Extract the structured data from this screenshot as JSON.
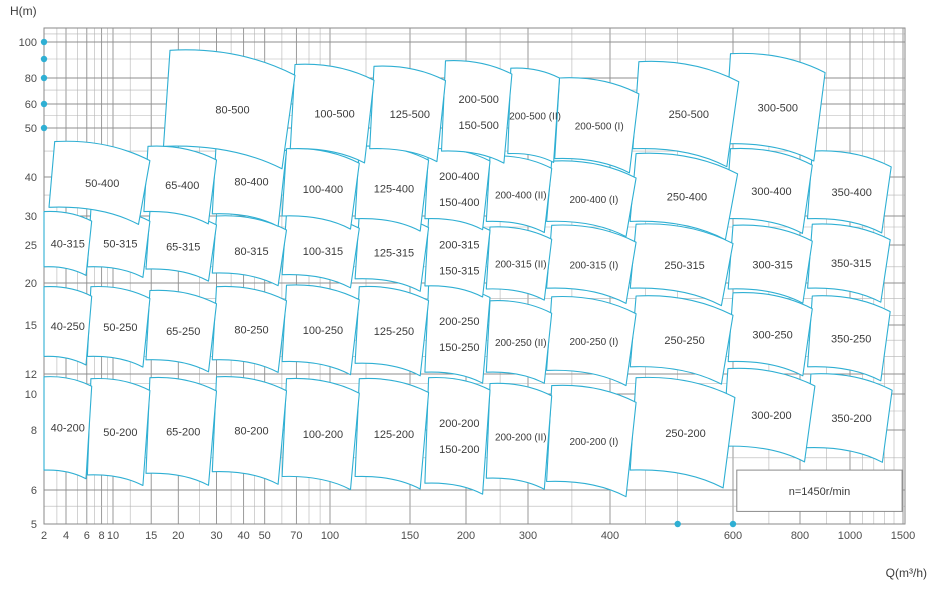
{
  "colors": {
    "accent": "#2fafd3",
    "grid_minor": "#b4b4b4",
    "grid_major": "#8f8f8f",
    "border": "#8a8a8a",
    "text": "#3c3c3c",
    "tile_fill": "#ffffff"
  },
  "chart_data": {
    "type": "pump-selection-map",
    "title": "",
    "xlabel": "Q(m³/h)",
    "ylabel": "H(m)",
    "x_range": [
      2,
      1500
    ],
    "y_range": [
      5,
      118
    ],
    "x_tick_values": [
      2,
      4,
      6,
      8,
      10,
      15,
      20,
      30,
      40,
      50,
      70,
      100,
      150,
      200,
      300,
      400,
      600,
      800,
      1000,
      1500
    ],
    "x_tick_labels": [
      "2",
      "4",
      "6",
      "8",
      "10",
      "15",
      "20",
      "30",
      "40",
      "50",
      "70",
      "100",
      "150",
      "200",
      "300",
      "400",
      "600",
      "800",
      "1000",
      "1500"
    ],
    "y_tick_values": [
      100,
      80,
      60,
      50,
      40,
      30,
      25,
      20,
      15,
      12,
      10,
      8,
      6,
      5
    ],
    "y_tick_labels": [
      "100",
      "80",
      "60",
      "50",
      "40",
      "30",
      "25",
      "20",
      "15",
      "12",
      "10",
      "8",
      "6",
      "5"
    ],
    "grid": {
      "x_lines": [
        2,
        3,
        4,
        5,
        6,
        7,
        8,
        9,
        10,
        12,
        15,
        20,
        25,
        30,
        35,
        40,
        45,
        50,
        60,
        70,
        80,
        90,
        100,
        120,
        150,
        200,
        250,
        300,
        350,
        400,
        450,
        500,
        600,
        700,
        800,
        900,
        1000,
        1100,
        1200,
        1300,
        1400,
        1500
      ],
      "y_lines": [
        5,
        5.5,
        6,
        7,
        8,
        9,
        10,
        11,
        12,
        13,
        14,
        15,
        16,
        18,
        20,
        22,
        25,
        28,
        30,
        35,
        40,
        45,
        50,
        55,
        60,
        70,
        80,
        90,
        100,
        110
      ]
    },
    "note": "n=1450r/min",
    "note_box": {
      "q": [
        610,
        1490
      ],
      "h": [
        5.35,
        6.6
      ]
    },
    "axis_dots_h": [
      100,
      90,
      80,
      60,
      50
    ],
    "axis_dots_q": [
      500,
      600
    ],
    "rows": [
      {
        "name": "500",
        "tiles": [
          {
            "labels": [
              "80-500"
            ],
            "q": [
              18.3,
              69
            ],
            "h": [
              46,
              95
            ]
          },
          {
            "labels": [
              "100-500"
            ],
            "q": [
              69,
              125
            ],
            "h": [
              45.5,
              87
            ]
          },
          {
            "labels": [
              "125-500"
            ],
            "q": [
              125,
              180
            ],
            "h": [
              45.5,
              86
            ]
          },
          {
            "labels": [
              "200-500",
              "150-500"
            ],
            "q": [
              180,
              270
            ],
            "h": [
              45,
              89
            ]
          },
          {
            "labels": [
              "200-500 (II)"
            ],
            "q": [
              268,
              335
            ],
            "h": [
              44.5,
              85
            ]
          },
          {
            "labels": [
              "200-500 (I)"
            ],
            "q": [
              335,
              440
            ],
            "h": [
              43.5,
              80
            ]
          },
          {
            "labels": [
              "250-500"
            ],
            "q": [
              440,
              615
            ],
            "h": [
              45.5,
              88.5
            ]
          },
          {
            "labels": [
              "300-500"
            ],
            "q": [
              595,
              895
            ],
            "h": [
              46.5,
              93
            ]
          }
        ]
      },
      {
        "name": "400",
        "tiles": [
          {
            "labels": [
              "50-400"
            ],
            "q": [
              2.8,
              14.8
            ],
            "h": [
              32,
              47
            ]
          },
          {
            "labels": [
              "65-400"
            ],
            "q": [
              14.5,
              30
            ],
            "h": [
              31,
              46
            ]
          },
          {
            "labels": [
              "80-400"
            ],
            "q": [
              30,
              63
            ],
            "h": [
              30.5,
              48
            ]
          },
          {
            "labels": [
              "100-400"
            ],
            "q": [
              63,
              116
            ],
            "h": [
              30,
              45.5
            ]
          },
          {
            "labels": [
              "125-400"
            ],
            "q": [
              116,
              165
            ],
            "h": [
              29.5,
              46
            ]
          },
          {
            "labels": [
              "200-400",
              "150-400"
            ],
            "q": [
              165,
              234
            ],
            "h": [
              29.5,
              45.5
            ]
          },
          {
            "labels": [
              "200-400 (II)"
            ],
            "q": [
              234,
              326
            ],
            "h": [
              29,
              44
            ]
          },
          {
            "labels": [
              "200-400 (I)"
            ],
            "q": [
              326,
              436
            ],
            "h": [
              29,
              43
            ]
          },
          {
            "labels": [
              "250-400"
            ],
            "q": [
              436,
              612
            ],
            "h": [
              29,
              44.5
            ]
          },
          {
            "labels": [
              "300-400"
            ],
            "q": [
              595,
              845
            ],
            "h": [
              29.5,
              45.5
            ]
          },
          {
            "labels": [
              "350-400"
            ],
            "q": [
              845,
              1370
            ],
            "h": [
              29.5,
              45
            ]
          }
        ]
      },
      {
        "name": "315",
        "tiles": [
          {
            "labels": [
              "40-315"
            ],
            "q": [
              2,
              6.6
            ],
            "h": [
              22,
              31
            ]
          },
          {
            "labels": [
              "50-315"
            ],
            "q": [
              6.5,
              14.8
            ],
            "h": [
              22,
              31.5
            ]
          },
          {
            "labels": [
              "65-315"
            ],
            "q": [
              14.8,
              30
            ],
            "h": [
              21.7,
              31
            ]
          },
          {
            "labels": [
              "80-315"
            ],
            "q": [
              30,
              63
            ],
            "h": [
              21.2,
              30
            ]
          },
          {
            "labels": [
              "100-315"
            ],
            "q": [
              63,
              116
            ],
            "h": [
              21,
              30.5
            ]
          },
          {
            "labels": [
              "125-315"
            ],
            "q": [
              116,
              165
            ],
            "h": [
              20.5,
              30.5
            ]
          },
          {
            "labels": [
              "200-315",
              "150-315"
            ],
            "q": [
              165,
              234
            ],
            "h": [
              19.6,
              29.6
            ]
          },
          {
            "labels": [
              "200-315 (II)"
            ],
            "q": [
              234,
              326
            ],
            "h": [
              19.2,
              28
            ]
          },
          {
            "labels": [
              "200-315 (I)"
            ],
            "q": [
              326,
              436
            ],
            "h": [
              19.3,
              28.3
            ]
          },
          {
            "labels": [
              "250-315"
            ],
            "q": [
              436,
              600
            ],
            "h": [
              19.3,
              28.5
            ]
          },
          {
            "labels": [
              "300-315"
            ],
            "q": [
              600,
              845
            ],
            "h": [
              19.2,
              28.3
            ]
          },
          {
            "labels": [
              "350-315"
            ],
            "q": [
              845,
              1360
            ],
            "h": [
              19.3,
              28.5
            ]
          }
        ]
      },
      {
        "name": "250",
        "tiles": [
          {
            "labels": [
              "40-250"
            ],
            "q": [
              2,
              6.6
            ],
            "h": [
              13,
              19.5
            ]
          },
          {
            "labels": [
              "50-250"
            ],
            "q": [
              6.5,
              14.8
            ],
            "h": [
              13,
              19.5
            ]
          },
          {
            "labels": [
              "65-250"
            ],
            "q": [
              14.8,
              30
            ],
            "h": [
              12.8,
              19
            ]
          },
          {
            "labels": [
              "80-250"
            ],
            "q": [
              30,
              63
            ],
            "h": [
              12.8,
              19.5
            ]
          },
          {
            "labels": [
              "100-250"
            ],
            "q": [
              63,
              116
            ],
            "h": [
              12.7,
              19.7
            ]
          },
          {
            "labels": [
              "125-250"
            ],
            "q": [
              116,
              165
            ],
            "h": [
              12.6,
              19.5
            ]
          },
          {
            "labels": [
              "200-250",
              "150-250"
            ],
            "q": [
              165,
              234
            ],
            "h": [
              12.1,
              19.7
            ]
          },
          {
            "labels": [
              "200-250 (II)"
            ],
            "q": [
              234,
              326
            ],
            "h": [
              12.1,
              17.7
            ]
          },
          {
            "labels": [
              "200-250 (I)"
            ],
            "q": [
              326,
              436
            ],
            "h": [
              12.2,
              18.2
            ]
          },
          {
            "labels": [
              "250-250"
            ],
            "q": [
              436,
              600
            ],
            "h": [
              12.4,
              18.3
            ]
          },
          {
            "labels": [
              "300-250"
            ],
            "q": [
              600,
              845
            ],
            "h": [
              12.7,
              18.7
            ]
          },
          {
            "labels": [
              "350-250"
            ],
            "q": [
              845,
              1360
            ],
            "h": [
              12.4,
              18.3
            ]
          }
        ]
      },
      {
        "name": "200",
        "tiles": [
          {
            "labels": [
              "40-200"
            ],
            "q": [
              2,
              6.6
            ],
            "h": [
              6.6,
              11.7
            ]
          },
          {
            "labels": [
              "50-200"
            ],
            "q": [
              6.5,
              14.8
            ],
            "h": [
              6.45,
              11.5
            ]
          },
          {
            "labels": [
              "65-200"
            ],
            "q": [
              14.8,
              30
            ],
            "h": [
              6.5,
              11.6
            ]
          },
          {
            "labels": [
              "80-200"
            ],
            "q": [
              30,
              63
            ],
            "h": [
              6.55,
              11.7
            ]
          },
          {
            "labels": [
              "100-200"
            ],
            "q": [
              63,
              116
            ],
            "h": [
              6.4,
              11.5
            ]
          },
          {
            "labels": [
              "125-200"
            ],
            "q": [
              116,
              165
            ],
            "h": [
              6.4,
              11.5
            ]
          },
          {
            "labels": [
              "200-200",
              "150-200"
            ],
            "q": [
              165,
              234
            ],
            "h": [
              6.2,
              11.6
            ]
          },
          {
            "labels": [
              "200-200 (II)"
            ],
            "q": [
              234,
              326
            ],
            "h": [
              6.35,
              11
            ]
          },
          {
            "labels": [
              "200-200 (I)"
            ],
            "q": [
              326,
              436
            ],
            "h": [
              6.25,
              10.8
            ]
          },
          {
            "labels": [
              "250-200"
            ],
            "q": [
              436,
              605
            ],
            "h": [
              6.6,
              11.6
            ]
          },
          {
            "labels": [
              "300-200"
            ],
            "q": [
              590,
              855
            ],
            "h": [
              7.4,
              12.3
            ]
          },
          {
            "labels": [
              "350-200"
            ],
            "q": [
              840,
              1380
            ],
            "h": [
              7.35,
              12
            ]
          }
        ]
      }
    ]
  }
}
